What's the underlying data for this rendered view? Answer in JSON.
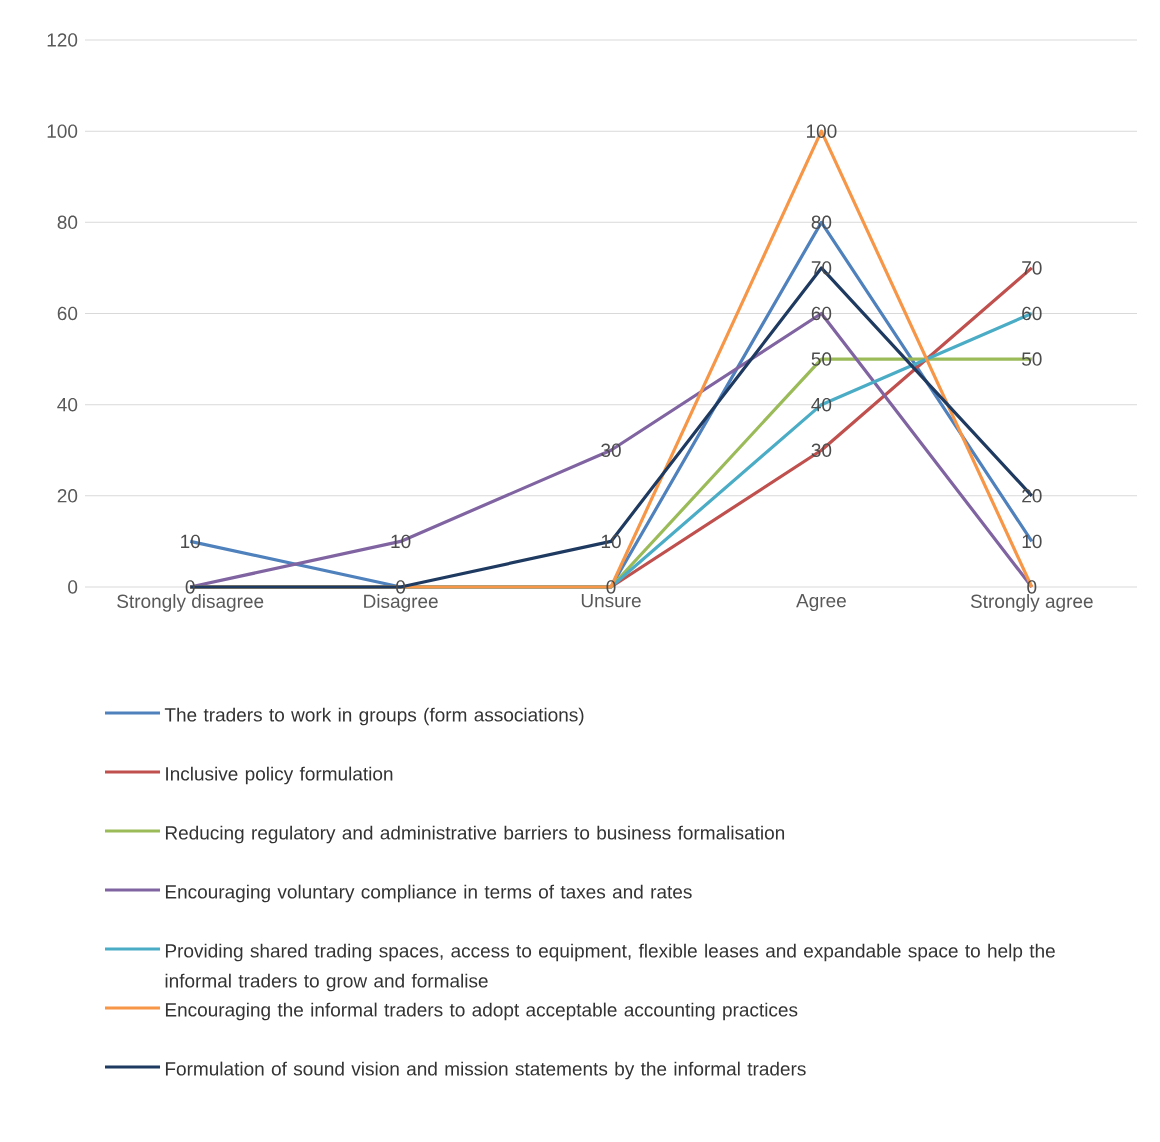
{
  "chart_data": {
    "type": "line",
    "categories": [
      "Strongly disagree",
      "Disagree",
      "Unsure",
      "Agree",
      "Strongly agree"
    ],
    "series": [
      {
        "name": "The traders to work in groups (form associations)",
        "color": "#4f81bd",
        "values": [
          10,
          0,
          0,
          80,
          10
        ],
        "value_labels": [
          "10",
          null,
          null,
          "80",
          "10"
        ]
      },
      {
        "name": "Inclusive policy formulation",
        "color": "#c0504d",
        "values": [
          0,
          0,
          0,
          30,
          70
        ],
        "value_labels": [
          null,
          null,
          null,
          "30",
          "70"
        ]
      },
      {
        "name": "Reducing regulatory and administrative barriers to business formalisation",
        "color": "#9bbb59",
        "values": [
          0,
          0,
          0,
          50,
          50
        ],
        "value_labels": [
          null,
          null,
          null,
          "50",
          "50"
        ]
      },
      {
        "name": "Encouraging voluntary compliance in terms of taxes and rates",
        "color": "#8064a2",
        "values": [
          0,
          10,
          30,
          60,
          0
        ],
        "value_labels": [
          null,
          "10",
          "30",
          "60",
          null
        ]
      },
      {
        "name": "Providing shared trading spaces, access to equipment, flexible leases and expandable space to help the informal traders to grow and formalise",
        "color": "#4bacc6",
        "values": [
          0,
          0,
          0,
          40,
          60
        ],
        "value_labels": [
          null,
          null,
          null,
          "40",
          "60"
        ]
      },
      {
        "name": "Encouraging the informal traders to adopt acceptable accounting practices",
        "color": "#f79646",
        "values": [
          0,
          0,
          0,
          100,
          0
        ],
        "value_labels": [
          null,
          null,
          "0",
          "100",
          "0"
        ]
      },
      {
        "name": "Formulation of sound vision and mission statements by the informal traders",
        "color": "#1f3a60",
        "values": [
          0,
          0,
          10,
          70,
          20
        ],
        "value_labels": [
          "0",
          "0",
          "10",
          "70",
          "20"
        ]
      }
    ],
    "ylim": [
      0,
      120
    ],
    "yticks": [
      0,
      20,
      40,
      60,
      80,
      100,
      120
    ],
    "grid": "y",
    "legend": "bottom",
    "marker": "none",
    "line_style": "solid"
  }
}
